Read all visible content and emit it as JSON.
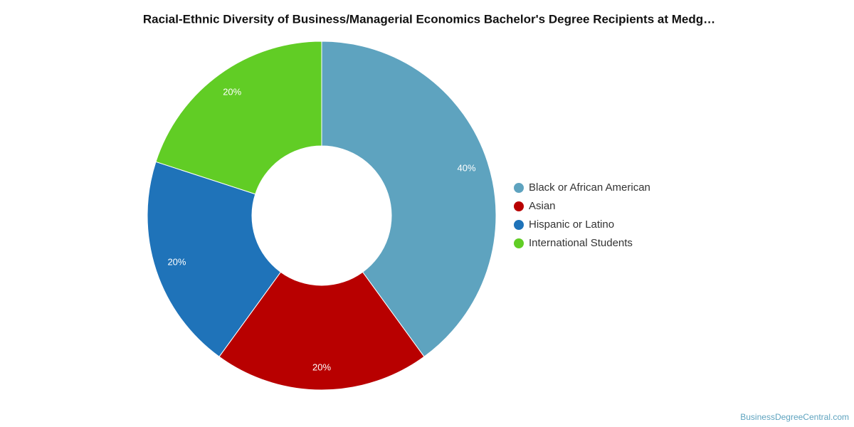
{
  "chart_data": {
    "type": "pie",
    "title": "Racial-Ethnic Diversity of Business/Managerial Economics Bachelor's Degree Recipients at Medg…",
    "categories": [
      "Black or African American",
      "Asian",
      "Hispanic or Latino",
      "International Students"
    ],
    "values": [
      40,
      20,
      20,
      20
    ],
    "value_labels": [
      "40%",
      "20%",
      "20%",
      "20%"
    ],
    "colors": [
      "#5ea3bf",
      "#b80000",
      "#1f73b9",
      "#61cd25"
    ],
    "legend": "right",
    "source": "BusinessDegreeCentral.com"
  }
}
